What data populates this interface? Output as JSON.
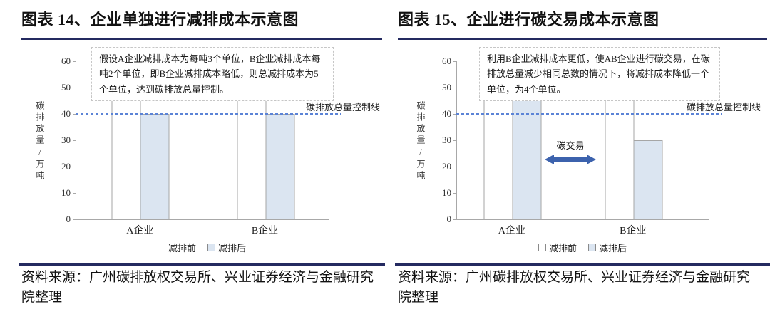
{
  "colors": {
    "accent_navy": "#242a60",
    "control_line_blue": "#5b83d6",
    "bar_fill_blue": "#dbe5f1",
    "bar_border": "#a6a6a6",
    "arrow_blue": "#3c62ad"
  },
  "chart_data": [
    {
      "type": "bar",
      "title": "图表 14、企业单独进行减排成本示意图",
      "annotation": "假设A企业减排成本为每吨3个单位，B企业减排成本每吨2个单位，即B企业减排成本略低，则总减排成本为5个单位，达到碳排放总量控制。",
      "ylabel": "碳排放量/万吨",
      "categories": [
        "A企业",
        "B企业"
      ],
      "series": [
        {
          "name": "减排前",
          "values": [
            50,
            50
          ]
        },
        {
          "name": "减排后",
          "values": [
            40,
            40
          ]
        }
      ],
      "ylim": [
        0,
        60
      ],
      "yticks": [
        0,
        10,
        20,
        30,
        40,
        50,
        60
      ],
      "grid": false,
      "legend_position": "bottom",
      "control_line": {
        "y": 40,
        "label": "碳排放总量控制线"
      },
      "source": "资料来源：广州碳排放权交易所、兴业证券经济与金融研究院整理",
      "layout": {
        "group_centers_pct": [
          25.5,
          75
        ]
      }
    },
    {
      "type": "bar",
      "title": "图表 15、企业进行碳交易成本示意图",
      "annotation": "利用B企业减排成本更低，使AB企业进行碳交易，在碳排放总量减少相同总数的情况下，将减排成本降低一个单位，为4个单位。",
      "ylabel": "碳排放量/万吨",
      "categories": [
        "A企业",
        "B企业"
      ],
      "series": [
        {
          "name": "减排前",
          "values": [
            50,
            50
          ]
        },
        {
          "name": "减排后",
          "values": [
            50,
            30
          ]
        }
      ],
      "ylim": [
        0,
        60
      ],
      "yticks": [
        0,
        10,
        20,
        30,
        40,
        50,
        60
      ],
      "grid": false,
      "legend_position": "bottom",
      "control_line": {
        "y": 40,
        "label": "碳排放总量控制线"
      },
      "trade_arrow_label": "碳交易",
      "source": "资料来源：广州碳排放权交易所、兴业证券经济与金融研究院整理",
      "layout": {
        "group_centers_pct": [
          22,
          70
        ]
      }
    }
  ]
}
